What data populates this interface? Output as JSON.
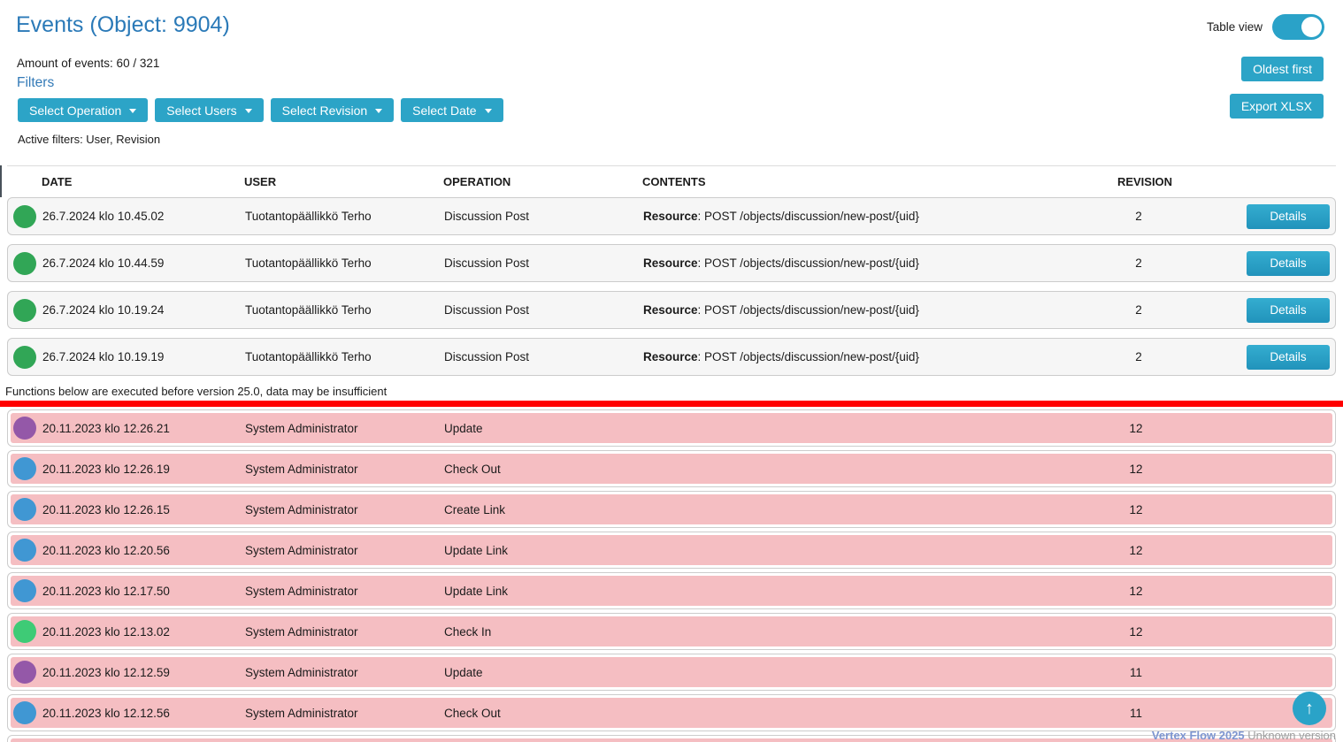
{
  "page": {
    "title": "Events (Object: 9904)",
    "amount_of_events": "Amount of events: 60 / 321",
    "filters_link": "Filters",
    "active_filters": "Active filters: User, Revision",
    "table_view_label": "Table view",
    "oldest_first_button": "Oldest first",
    "export_button": "Export XLSX",
    "scroll_top_icon": "↑"
  },
  "filter_buttons": [
    {
      "label": "Select Operation"
    },
    {
      "label": "Select Users"
    },
    {
      "label": "Select Revision"
    },
    {
      "label": "Select Date"
    }
  ],
  "table": {
    "columns": [
      "DATE",
      "USER",
      "OPERATION",
      "CONTENTS",
      "REVISION"
    ],
    "details_button": "Details",
    "warning": "Functions below are executed before version 25.0, data may be insufficient",
    "recent_rows": [
      {
        "indicator": "#31a656",
        "date": "26.7.2024 klo 10.45.02",
        "user": "Tuotantopäällikkö Terho",
        "operation": "Discussion Post",
        "contents_bold": "Resource",
        "contents_text": ": POST /objects/discussion/new-post/{uid}",
        "revision": "2"
      },
      {
        "indicator": "#31a656",
        "date": "26.7.2024 klo 10.44.59",
        "user": "Tuotantopäällikkö Terho",
        "operation": "Discussion Post",
        "contents_bold": "Resource",
        "contents_text": ": POST /objects/discussion/new-post/{uid}",
        "revision": "2"
      },
      {
        "indicator": "#31a656",
        "date": "26.7.2024 klo 10.19.24",
        "user": "Tuotantopäällikkö Terho",
        "operation": "Discussion Post",
        "contents_bold": "Resource",
        "contents_text": ": POST /objects/discussion/new-post/{uid}",
        "revision": "2"
      },
      {
        "indicator": "#31a656",
        "date": "26.7.2024 klo 10.19.19",
        "user": "Tuotantopäällikkö Terho",
        "operation": "Discussion Post",
        "contents_bold": "Resource",
        "contents_text": ": POST /objects/discussion/new-post/{uid}",
        "revision": "2"
      }
    ],
    "old_rows": [
      {
        "indicator": "#9458a8",
        "date": "20.11.2023 klo 12.26.21",
        "user": "System Administrator",
        "operation": "Update",
        "revision": "12"
      },
      {
        "indicator": "#4097d3",
        "date": "20.11.2023 klo 12.26.19",
        "user": "System Administrator",
        "operation": "Check Out",
        "revision": "12"
      },
      {
        "indicator": "#4097d3",
        "date": "20.11.2023 klo 12.26.15",
        "user": "System Administrator",
        "operation": "Create Link",
        "revision": "12"
      },
      {
        "indicator": "#4097d3",
        "date": "20.11.2023 klo 12.20.56",
        "user": "System Administrator",
        "operation": "Update Link",
        "revision": "12"
      },
      {
        "indicator": "#4097d3",
        "date": "20.11.2023 klo 12.17.50",
        "user": "System Administrator",
        "operation": "Update Link",
        "revision": "12"
      },
      {
        "indicator": "#3ecb76",
        "date": "20.11.2023 klo 12.13.02",
        "user": "System Administrator",
        "operation": "Check In",
        "revision": "12"
      },
      {
        "indicator": "#9458a8",
        "date": "20.11.2023 klo 12.12.59",
        "user": "System Administrator",
        "operation": "Update",
        "revision": "11"
      },
      {
        "indicator": "#4097d3",
        "date": "20.11.2023 klo 12.12.56",
        "user": "System Administrator",
        "operation": "Check Out",
        "revision": "11"
      },
      {
        "indicator": "#4097d3",
        "date": "",
        "user": "",
        "operation": "",
        "revision": ""
      }
    ]
  },
  "footer": {
    "brand": "Vertex Flow 2025",
    "version": "Unknown version"
  },
  "colors": {
    "accent_teal": "#2ca4c7",
    "title_blue": "#2b7ab8",
    "link_blue": "#337ab7",
    "warning_red": "#ff0000",
    "old_row_pink": "#f5bec2",
    "row_gray": "#f6f6f6",
    "status_green": "#31a656",
    "status_light_green": "#3ecb76",
    "status_blue": "#4097d3",
    "status_purple": "#9458a8"
  }
}
